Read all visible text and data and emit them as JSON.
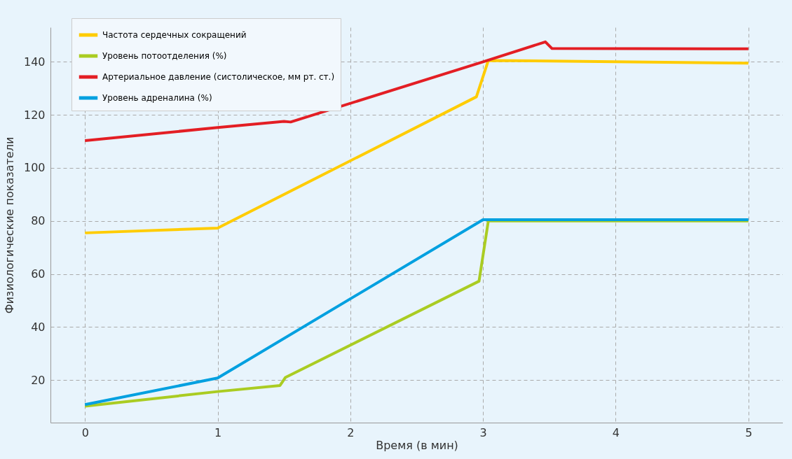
{
  "chart_data": {
    "type": "line",
    "xlabel": "Время (в мин)",
    "ylabel": "Физиологические показатели",
    "xlim": [
      -0.26,
      5.26
    ],
    "ylim": [
      4,
      153
    ],
    "xticks": [
      0,
      1,
      2,
      3,
      4,
      5
    ],
    "yticks": [
      20,
      40,
      60,
      80,
      100,
      120,
      140
    ],
    "grid": true,
    "legend": "top left",
    "line_style": "solid",
    "series": [
      {
        "name": "Частота сердечных сокращений",
        "color": "#ffcc00",
        "x": [
          0,
          1,
          2.95,
          3.04,
          5
        ],
        "values": [
          75.5,
          77.3,
          126.8,
          140.5,
          139.5
        ]
      },
      {
        "name": "Уровень потоотделения (%)",
        "color": "#aacc22",
        "x": [
          0,
          1,
          1.47,
          1.51,
          2.97,
          3.04,
          5
        ],
        "values": [
          10.2,
          15.7,
          18,
          21,
          57.3,
          80,
          80
        ]
      },
      {
        "name": "Артериальное давление (систолическое, мм рт. ст.)",
        "color": "#e31e24",
        "x": [
          0,
          1,
          1.5,
          1.55,
          3,
          3.47,
          3.52,
          5
        ],
        "values": [
          110.3,
          115.2,
          117.5,
          117.3,
          140,
          147.5,
          145,
          144.9
        ]
      },
      {
        "name": "Уровень адреналина (%)",
        "color": "#00a0e0",
        "x": [
          0,
          1,
          3,
          5
        ],
        "values": [
          10.8,
          20.8,
          80.5,
          80.5
        ]
      }
    ]
  }
}
